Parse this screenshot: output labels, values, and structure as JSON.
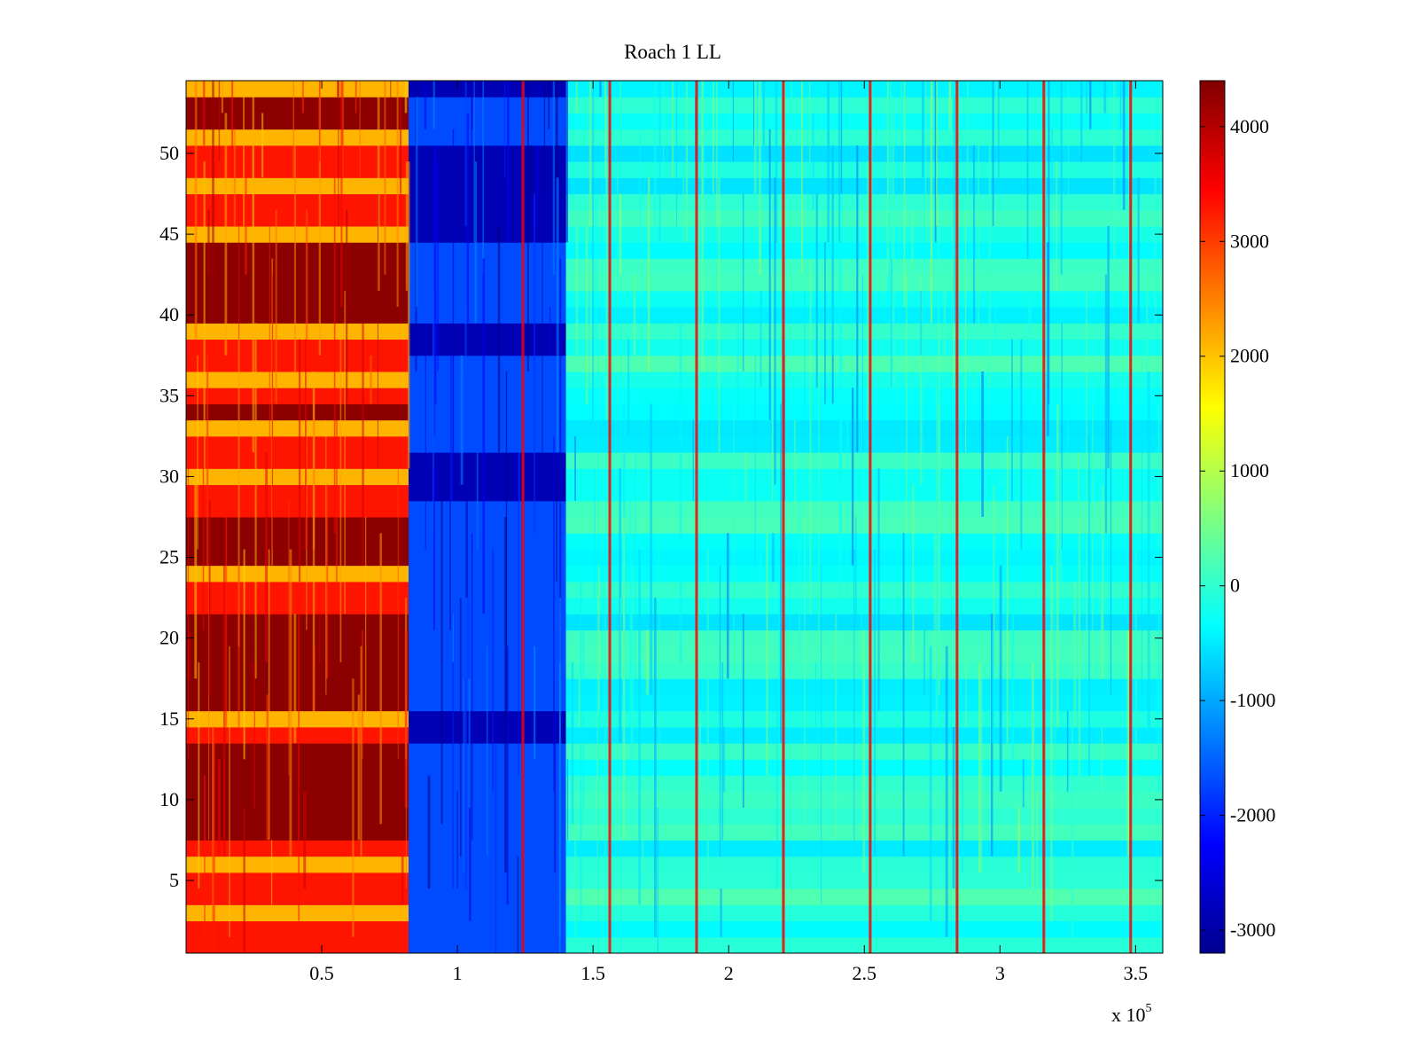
{
  "chart_data": {
    "type": "heatmap",
    "title": "Roach 1 LL",
    "xlabel": "",
    "ylabel": "",
    "xlim": [
      0,
      360000
    ],
    "ylim": [
      0.5,
      54.5
    ],
    "x_ticks": [
      50000,
      100000,
      150000,
      200000,
      250000,
      300000,
      350000
    ],
    "x_tick_labels": [
      "0.5",
      "1",
      "1.5",
      "2",
      "2.5",
      "3",
      "3.5"
    ],
    "x_exponent_label": {
      "base": "x 10",
      "exp": "5"
    },
    "y_ticks": [
      5,
      10,
      15,
      20,
      25,
      30,
      35,
      40,
      45,
      50
    ],
    "y_tick_labels": [
      "5",
      "10",
      "15",
      "20",
      "25",
      "30",
      "35",
      "40",
      "45",
      "50"
    ],
    "colormap": "jet",
    "clim": [
      -3200,
      4400
    ],
    "colorbar_ticks": [
      4000,
      3000,
      2000,
      1000,
      0,
      -1000,
      -2000,
      -3000
    ],
    "colorbar_tick_labels": [
      "4000",
      "3000",
      "2000",
      "1000",
      "0",
      "-1000",
      "-2000",
      "-3000"
    ],
    "rows": 54,
    "regions": [
      {
        "x_range": [
          0,
          82000
        ],
        "approx_value": 3400,
        "description": "high band (red/dark red)"
      },
      {
        "x_range": [
          82000,
          140000
        ],
        "approx_value": -2000,
        "description": "low band (blue/dark blue)"
      },
      {
        "x_range": [
          140000,
          360000
        ],
        "approx_value": -200,
        "description": "mid band (cyan/green)"
      }
    ],
    "dark_red_rows": [
      8,
      9,
      10,
      11,
      12,
      13,
      16,
      17,
      18,
      19,
      20,
      21,
      25,
      26,
      27,
      34,
      40,
      41,
      42,
      43,
      44,
      52,
      53
    ],
    "blue_dark_rows": [
      14,
      15,
      29,
      30,
      31,
      38,
      39,
      45,
      46,
      47,
      48,
      49,
      50,
      54
    ],
    "vertical_spike_x": [
      124000,
      156000,
      188000,
      220000,
      252000,
      284000,
      316000,
      348000
    ],
    "vertical_spike_value": 3500
  }
}
